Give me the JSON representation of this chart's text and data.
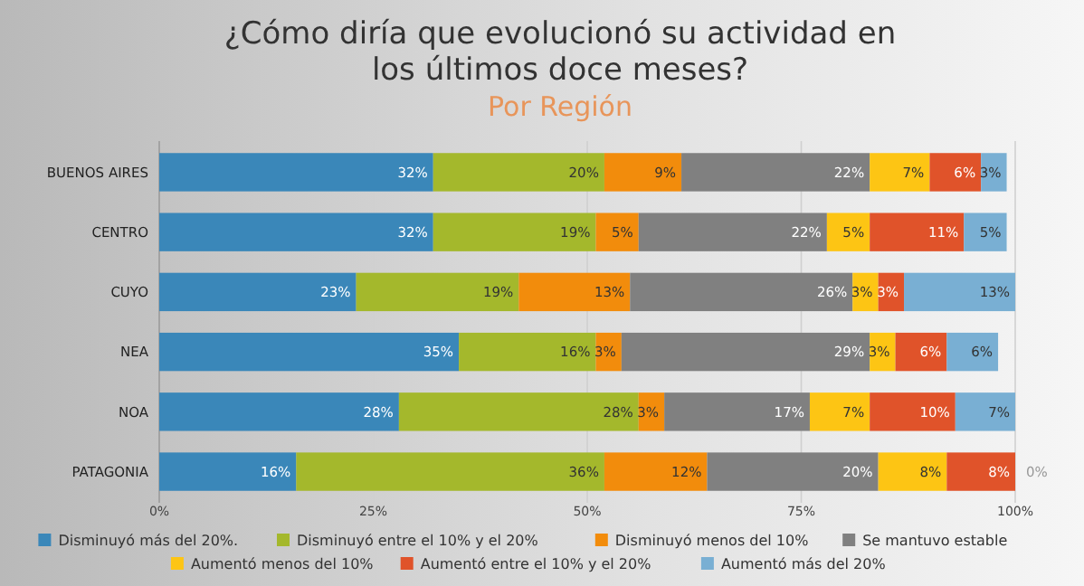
{
  "chart_data": {
    "type": "bar",
    "orientation": "horizontal",
    "stacked": true,
    "title": "¿Cómo diría que evolucionó su actividad en los últimos doce meses?",
    "subtitle": "Por Región",
    "categories": [
      "BUENOS AIRES",
      "CENTRO",
      "CUYO",
      "NEA",
      "NOA",
      "PATAGONIA"
    ],
    "series": [
      {
        "name": "Disminuyó más del 20%.",
        "color": "#3a87b9",
        "values": [
          32,
          32,
          23,
          35,
          28,
          16
        ],
        "value_labels": [
          "32%",
          "32%",
          "23%",
          "35%",
          "28%",
          "16%"
        ]
      },
      {
        "name": "Disminuyó entre el 10% y el 20%",
        "color": "#a4b82c",
        "values": [
          20,
          19,
          19,
          16,
          28,
          36
        ],
        "value_labels": [
          "20%",
          "19%",
          "19%",
          "16%",
          "28%",
          "36%"
        ]
      },
      {
        "name": "Disminuyó menos del 10%",
        "color": "#f28c0c",
        "values": [
          9,
          5,
          13,
          3,
          3,
          12
        ],
        "value_labels": [
          "9%",
          "5%",
          "13%",
          "3%",
          "3%",
          "12%"
        ]
      },
      {
        "name": "Se mantuvo estable",
        "color": "#808080",
        "values": [
          22,
          22,
          26,
          29,
          17,
          20
        ],
        "value_labels": [
          "22%",
          "22%",
          "26%",
          "29%",
          "17%",
          "20%"
        ]
      },
      {
        "name": "Aumentó menos del 10%",
        "color": "#fdc514",
        "values": [
          7,
          5,
          3,
          3,
          7,
          8
        ],
        "value_labels": [
          "7%",
          "5%",
          "3%",
          "3%",
          "7%",
          "8%"
        ]
      },
      {
        "name": "Aumentó entre el 10% y el 20%",
        "color": "#e0532a",
        "values": [
          6,
          11,
          3,
          6,
          10,
          8
        ],
        "value_labels": [
          "6%",
          "11%",
          "3%",
          "6%",
          "10%",
          "8%"
        ]
      },
      {
        "name": "Aumentó más del 20%",
        "color": "#79afd3",
        "values": [
          3,
          5,
          13,
          6,
          7,
          0
        ],
        "value_labels": [
          "3%",
          "5%",
          "13%",
          "6%",
          "7%",
          "0%"
        ]
      }
    ],
    "xlim": [
      0,
      100
    ],
    "xticks": [
      {
        "value": 0,
        "label": "0%"
      },
      {
        "value": 25,
        "label": "25%"
      },
      {
        "value": 50,
        "label": "50%"
      },
      {
        "value": 75,
        "label": "75%"
      },
      {
        "value": 100,
        "label": "100%"
      }
    ],
    "grid": "x",
    "legend": "bottom"
  }
}
